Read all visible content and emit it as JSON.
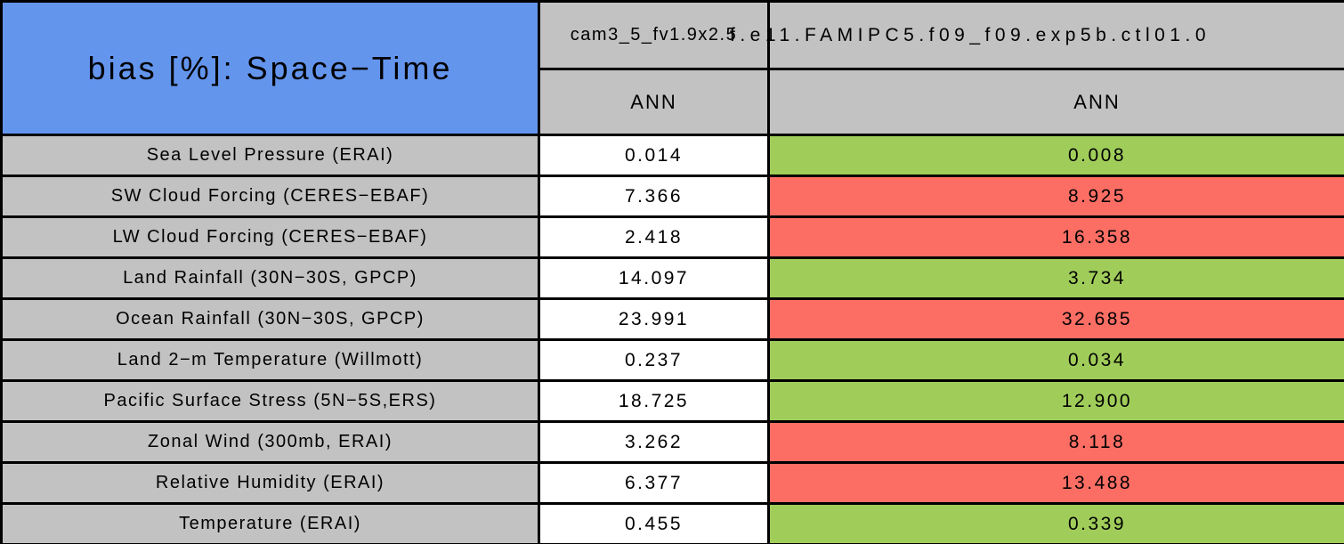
{
  "table": {
    "title": "bias [%]: Space−Time",
    "columns": [
      {
        "model": "cam3_5_fv1.9x2.5",
        "season": "ANN"
      },
      {
        "model": "f.e11.FAMIPC5.f09_f09.exp5b.ctl01.0",
        "season": "ANN"
      }
    ],
    "colors": {
      "green": "#A0CD5A",
      "red": "#FC6E64",
      "header_blue": "#6495ED",
      "cell_gray": "#C2C2C2"
    },
    "rows": [
      {
        "label": "Sea Level Pressure (ERAI)",
        "values": [
          "0.014",
          "0.008"
        ],
        "status": "green"
      },
      {
        "label": "SW Cloud Forcing (CERES−EBAF)",
        "values": [
          "7.366",
          "8.925"
        ],
        "status": "red"
      },
      {
        "label": "LW Cloud Forcing (CERES−EBAF)",
        "values": [
          "2.418",
          "16.358"
        ],
        "status": "red"
      },
      {
        "label": "Land Rainfall (30N−30S, GPCP)",
        "values": [
          "14.097",
          "3.734"
        ],
        "status": "green"
      },
      {
        "label": "Ocean Rainfall (30N−30S, GPCP)",
        "values": [
          "23.991",
          "32.685"
        ],
        "status": "red"
      },
      {
        "label": "Land 2−m Temperature (Willmott)",
        "values": [
          "0.237",
          "0.034"
        ],
        "status": "green"
      },
      {
        "label": "Pacific Surface Stress (5N−5S,ERS)",
        "values": [
          "18.725",
          "12.900"
        ],
        "status": "green"
      },
      {
        "label": "Zonal Wind (300mb, ERAI)",
        "values": [
          "3.262",
          "8.118"
        ],
        "status": "red"
      },
      {
        "label": "Relative Humidity (ERAI)",
        "values": [
          "6.377",
          "13.488"
        ],
        "status": "red"
      },
      {
        "label": "Temperature (ERAI)",
        "values": [
          "0.455",
          "0.339"
        ],
        "status": "green"
      }
    ]
  },
  "chart_data": {
    "type": "table",
    "title": "bias [%]: Space−Time",
    "season": "ANN",
    "categories": [
      "Sea Level Pressure (ERAI)",
      "SW Cloud Forcing (CERES−EBAF)",
      "LW Cloud Forcing (CERES−EBAF)",
      "Land Rainfall (30N−30S, GPCP)",
      "Ocean Rainfall (30N−30S, GPCP)",
      "Land 2−m Temperature (Willmott)",
      "Pacific Surface Stress (5N−5S,ERS)",
      "Zonal Wind (300mb, ERAI)",
      "Relative Humidity (ERAI)",
      "Temperature (ERAI)"
    ],
    "series": [
      {
        "name": "cam3_5_fv1.9x2.5",
        "values": [
          0.014,
          7.366,
          2.418,
          14.097,
          23.991,
          0.237,
          18.725,
          3.262,
          6.377,
          0.455
        ]
      },
      {
        "name": "f.e11.FAMIPC5.f09_f09.exp5b.ctl01.0",
        "values": [
          0.008,
          8.925,
          16.358,
          3.734,
          32.685,
          0.034,
          12.9,
          8.118,
          13.488,
          0.339
        ],
        "highlight": [
          "green",
          "red",
          "red",
          "green",
          "red",
          "green",
          "green",
          "red",
          "red",
          "green"
        ]
      }
    ]
  }
}
